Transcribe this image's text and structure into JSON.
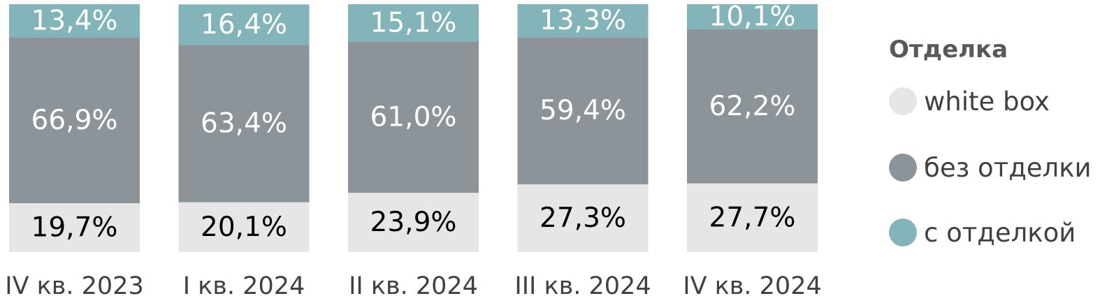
{
  "chart_data": {
    "type": "bar",
    "stacked": true,
    "percent_stacked": true,
    "categories": [
      "IV кв. 2023",
      "I кв. 2024",
      "II кв. 2024",
      "III кв. 2024",
      "IV кв. 2024"
    ],
    "series": [
      {
        "name": "white box",
        "color": "#e6e6e6",
        "label_color": "#000000",
        "values": [
          19.7,
          20.1,
          23.9,
          27.3,
          27.7
        ],
        "labels": [
          "19,7%",
          "20,1%",
          "23,9%",
          "27,3%",
          "27,7%"
        ]
      },
      {
        "name": "без отделки",
        "color": "#8c9399",
        "label_color": "#ffffff",
        "values": [
          66.9,
          63.4,
          61.0,
          59.4,
          62.2
        ],
        "labels": [
          "66,9%",
          "63,4%",
          "61,0%",
          "59,4%",
          "62,2%"
        ]
      },
      {
        "name": "с отделкой",
        "color": "#82b4b9",
        "label_color": "#ffffff",
        "values": [
          13.4,
          16.4,
          15.1,
          13.3,
          10.1
        ],
        "labels": [
          "13,4%",
          "16,4%",
          "15,1%",
          "13,3%",
          "10,1%"
        ]
      }
    ],
    "title": "",
    "xlabel": "",
    "ylabel": "",
    "ylim": [
      0,
      100
    ],
    "grid": false,
    "legend": {
      "title": "Отделка",
      "position": "right"
    }
  }
}
